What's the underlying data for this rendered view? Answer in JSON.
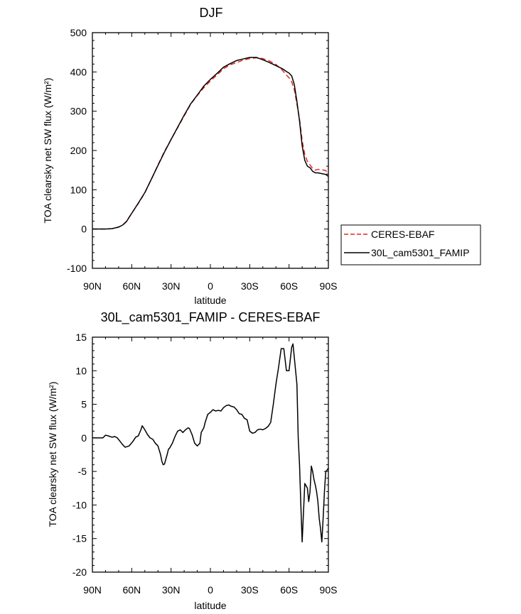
{
  "chart_data": [
    {
      "type": "line",
      "title": "DJF",
      "xlabel": "latitude",
      "ylabel": "TOA clearsky net SW flux (W/m²)",
      "xlim": [
        -90,
        90
      ],
      "ylim": [
        -100,
        500
      ],
      "x_ticks": [
        -90,
        -60,
        -30,
        0,
        30,
        60,
        90
      ],
      "x_tick_labels": [
        "90N",
        "60N",
        "30N",
        "0",
        "30S",
        "60S",
        "90S"
      ],
      "y_ticks": [
        -100,
        0,
        100,
        200,
        300,
        400,
        500
      ],
      "y_tick_labels": [
        "-100",
        "0",
        "100",
        "200",
        "300",
        "400",
        "500"
      ],
      "grid": false,
      "legend_position": "right",
      "series": [
        {
          "name": "CERES-EBAF",
          "color": "#e8261f",
          "dash": "dashed",
          "x": [
            -90,
            -85,
            -80,
            -75,
            -70,
            -67,
            -64,
            -60,
            -55,
            -50,
            -45,
            -40,
            -35,
            -30,
            -25,
            -20,
            -15,
            -10,
            -5,
            0,
            5,
            10,
            15,
            20,
            25,
            30,
            35,
            40,
            45,
            50,
            55,
            58,
            60,
            62,
            64,
            66,
            68,
            70,
            72,
            74,
            76,
            78,
            80,
            82,
            85,
            88,
            90
          ],
          "y": [
            0,
            0,
            0,
            1,
            5,
            10,
            20,
            40,
            65,
            92,
            127,
            163,
            198,
            228,
            258,
            288,
            318,
            340,
            360,
            377,
            392,
            408,
            418,
            424,
            430,
            434,
            436,
            434,
            428,
            419,
            404,
            392,
            385,
            375,
            355,
            318,
            280,
            225,
            190,
            172,
            163,
            154,
            150,
            152,
            151,
            149,
            140
          ]
        },
        {
          "name": "30L_cam5301_FAMIP",
          "color": "#000000",
          "dash": "solid",
          "x": [
            -90,
            -85,
            -80,
            -75,
            -70,
            -67,
            -64,
            -60,
            -55,
            -50,
            -45,
            -40,
            -35,
            -30,
            -25,
            -20,
            -15,
            -10,
            -5,
            0,
            5,
            10,
            15,
            20,
            25,
            30,
            35,
            40,
            45,
            50,
            55,
            58,
            60,
            62,
            64,
            66,
            68,
            70,
            72,
            74,
            76,
            78,
            80,
            82,
            85,
            88,
            90
          ],
          "y": [
            0,
            0,
            0,
            1,
            5,
            10,
            19,
            40,
            66,
            93,
            127,
            162,
            196,
            228,
            259,
            290,
            319,
            341,
            364,
            381,
            396,
            412,
            421,
            429,
            433,
            437,
            437,
            431,
            424,
            416,
            408,
            401,
            397,
            390,
            368,
            325,
            275,
            212,
            175,
            160,
            156,
            147,
            143,
            143,
            141,
            139,
            134
          ]
        }
      ]
    },
    {
      "type": "line",
      "title": "30L_cam5301_FAMIP - CERES-EBAF",
      "xlabel": "latitude",
      "ylabel": "TOA clearsky net SW flux (W/m²)",
      "xlim": [
        -90,
        90
      ],
      "ylim": [
        -20,
        15
      ],
      "x_ticks": [
        -90,
        -60,
        -30,
        0,
        30,
        60,
        90
      ],
      "x_tick_labels": [
        "90N",
        "60N",
        "30N",
        "0",
        "30S",
        "60S",
        "90S"
      ],
      "y_ticks": [
        -20,
        -15,
        -10,
        -5,
        0,
        5,
        10,
        15
      ],
      "y_tick_labels": [
        "-20",
        "-15",
        "-10",
        "-5",
        "0",
        "5",
        "10",
        "15"
      ],
      "grid": false,
      "series": [
        {
          "color": "#000000",
          "dash": "solid",
          "x": [
            -90,
            -85,
            -82,
            -80,
            -78,
            -75,
            -73,
            -71,
            -69,
            -67,
            -65,
            -62,
            -59,
            -57,
            -55,
            -53,
            -52,
            -50,
            -48,
            -46,
            -44,
            -42,
            -40,
            -38,
            -37,
            -36,
            -35,
            -33,
            -32,
            -31,
            -29,
            -27,
            -25,
            -23,
            -21,
            -19,
            -17,
            -16,
            -14,
            -12,
            -10,
            -8,
            -7,
            -5,
            -4,
            -2,
            0,
            2,
            4,
            6,
            8,
            10,
            12,
            14,
            16,
            18,
            20,
            22,
            24,
            26,
            28,
            30,
            32,
            34,
            36,
            38,
            40,
            42,
            44,
            46,
            48,
            50,
            52,
            54,
            56,
            58,
            60,
            62,
            63,
            64,
            66,
            67,
            68,
            69,
            70,
            72,
            74,
            75,
            76,
            77,
            78,
            79,
            80,
            81,
            82,
            83,
            84,
            85,
            86,
            87,
            88,
            89,
            90
          ],
          "y": [
            0,
            0,
            0,
            0.4,
            0.3,
            0.1,
            0.2,
            0.0,
            -0.5,
            -1.0,
            -1.4,
            -1.2,
            -0.5,
            0.1,
            0.3,
            1.2,
            1.8,
            1.2,
            0.5,
            0.0,
            -0.2,
            -0.8,
            -1.2,
            -2.5,
            -3.5,
            -4.0,
            -3.9,
            -2.5,
            -1.7,
            -1.5,
            -0.8,
            0.2,
            1.0,
            1.2,
            0.8,
            1.2,
            1.5,
            1.4,
            0.5,
            -0.8,
            -1.2,
            -0.8,
            0.8,
            1.5,
            2.3,
            3.5,
            3.8,
            4.2,
            4.0,
            4.1,
            4.0,
            4.5,
            4.8,
            4.9,
            4.7,
            4.6,
            4.2,
            3.6,
            3.5,
            2.9,
            2.7,
            1.0,
            0.7,
            0.8,
            1.2,
            1.3,
            1.2,
            1.4,
            1.7,
            2.3,
            5.0,
            8.0,
            10.5,
            13.3,
            13.3,
            10.0,
            10.0,
            13.5,
            14.0,
            12.0,
            8.0,
            0.0,
            -4.0,
            -10.0,
            -15.5,
            -6.8,
            -7.5,
            -9.5,
            -8.0,
            -4.2,
            -5.0,
            -6.2,
            -7.0,
            -8.0,
            -9.5,
            -12.0,
            -13.5,
            -15.5,
            -12.0,
            -8.0,
            -5.0,
            -4.8,
            -4.5
          ]
        }
      ]
    }
  ]
}
